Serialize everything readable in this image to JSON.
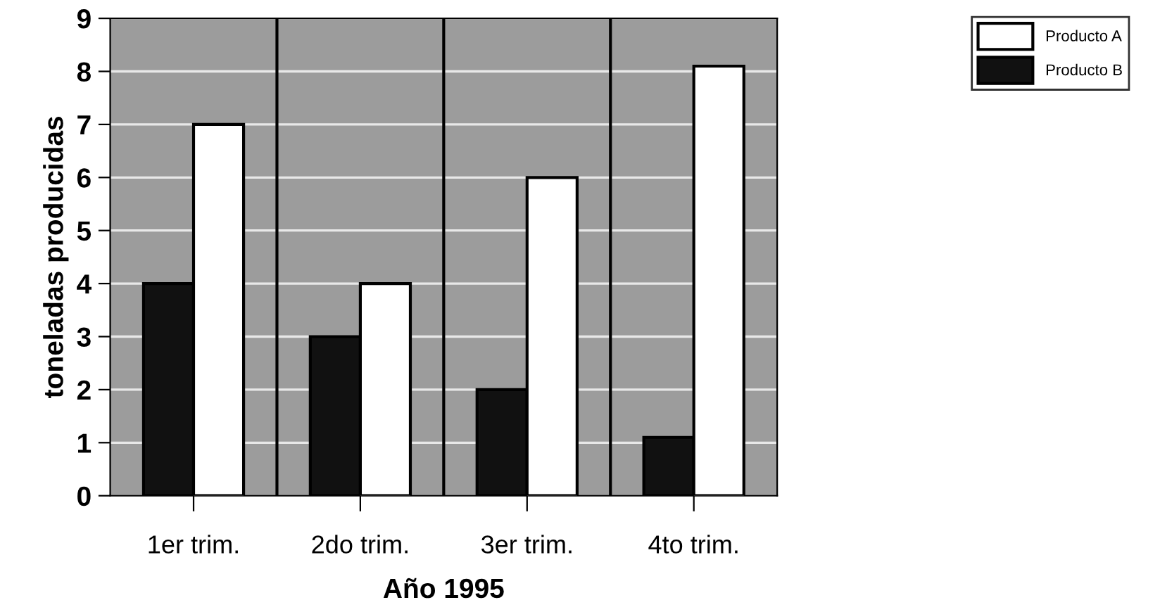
{
  "chart_data": {
    "type": "bar",
    "xlabel": "Año 1995",
    "ylabel": "toneladas producidas",
    "categories": [
      "1er trim.",
      "2do trim.",
      "3er trim.",
      "4to trim."
    ],
    "series": [
      {
        "name": "Producto B",
        "color": "#111111",
        "values": [
          4,
          3,
          2,
          1.1
        ]
      },
      {
        "name": "Producto A",
        "color": "#ffffff",
        "values": [
          7,
          4,
          6,
          8.1
        ]
      }
    ],
    "ylim": [
      0,
      9
    ],
    "yticks": [
      0,
      1,
      2,
      3,
      4,
      5,
      6,
      7,
      8,
      9
    ],
    "grid": "y",
    "legend": "top right"
  }
}
